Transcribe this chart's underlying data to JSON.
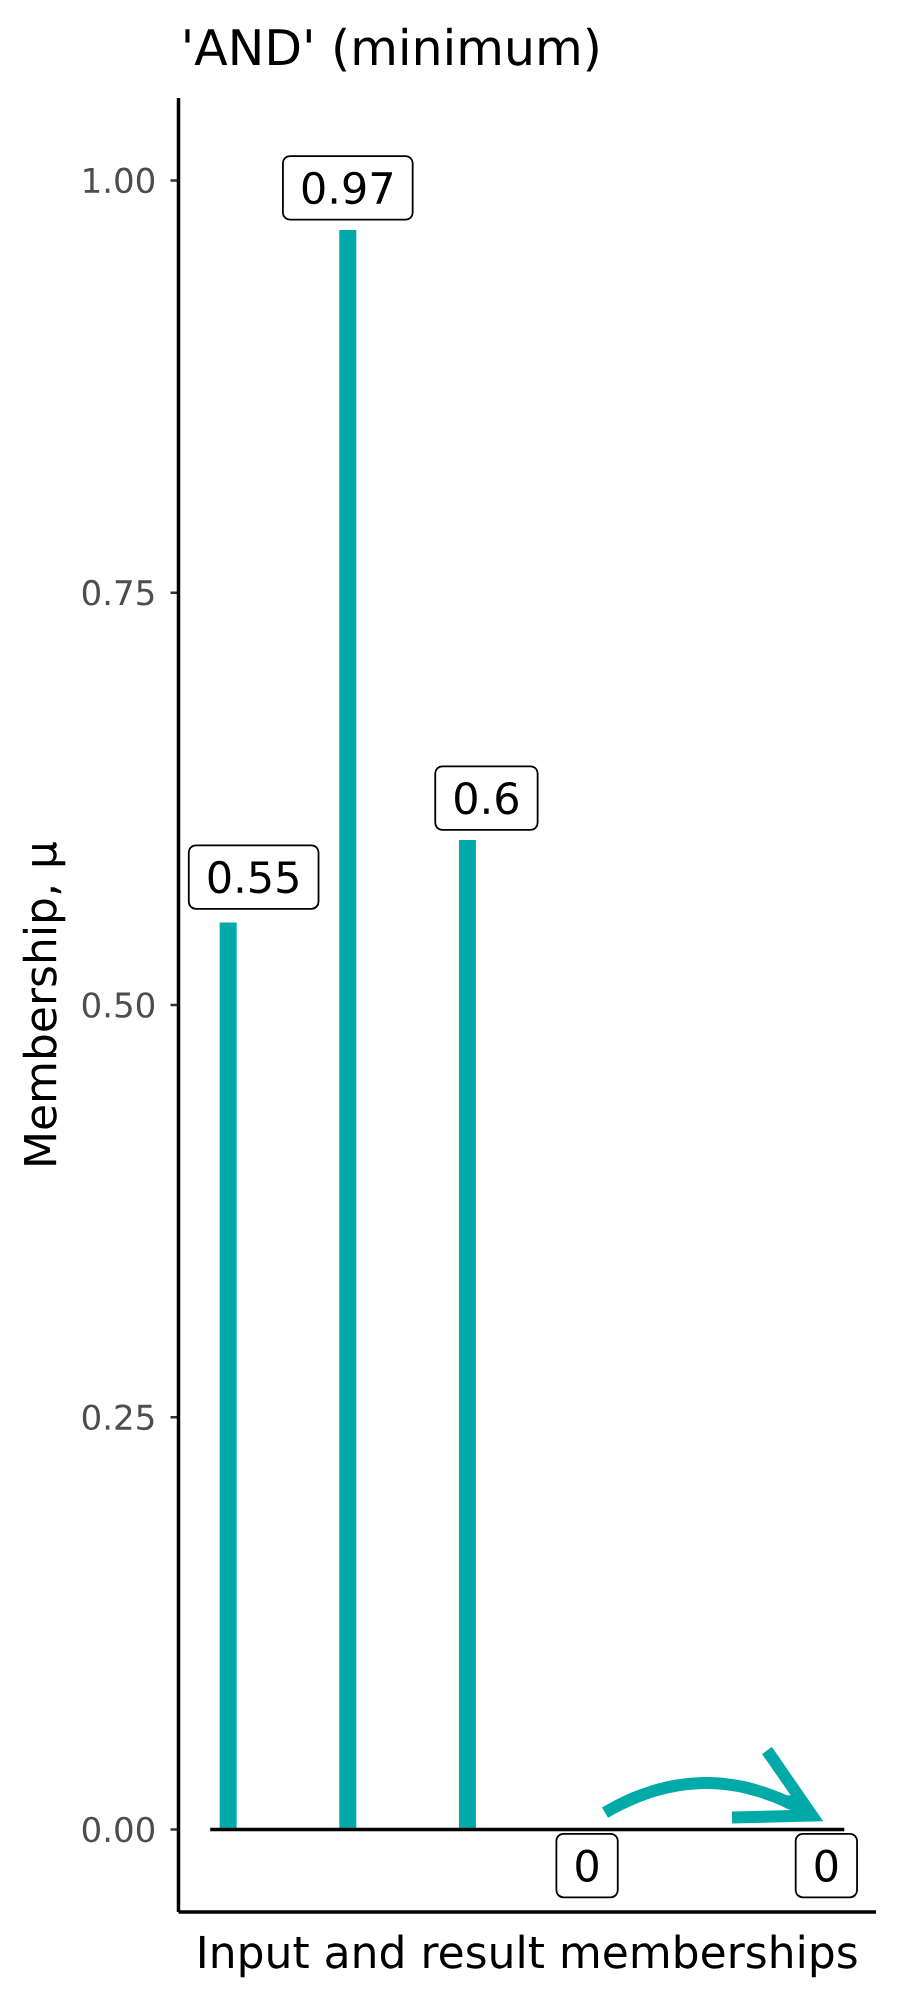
{
  "chart_data": {
    "type": "bar",
    "title": "'AND' (minimum)",
    "xlabel": "Input and result memberships",
    "ylabel": "Membership, μ",
    "categories": [
      null,
      null,
      null,
      null,
      null,
      null
    ],
    "values": [
      0.55,
      0.97,
      0.6,
      0,
      null,
      0
    ],
    "color": "#00aaa9",
    "ylim": [
      -0.05,
      1.05
    ],
    "yticks": [
      {
        "value": 0,
        "label": "0.00"
      },
      0.25,
      {
        "value": 0.5,
        "label": "0.50"
      },
      0.75,
      {
        "value": 1,
        "label": "1.00"
      }
    ],
    "data_labels": true,
    "ref_lines": [
      {
        "axis": "y",
        "value": 0,
        "color": "#000000"
      }
    ]
  }
}
